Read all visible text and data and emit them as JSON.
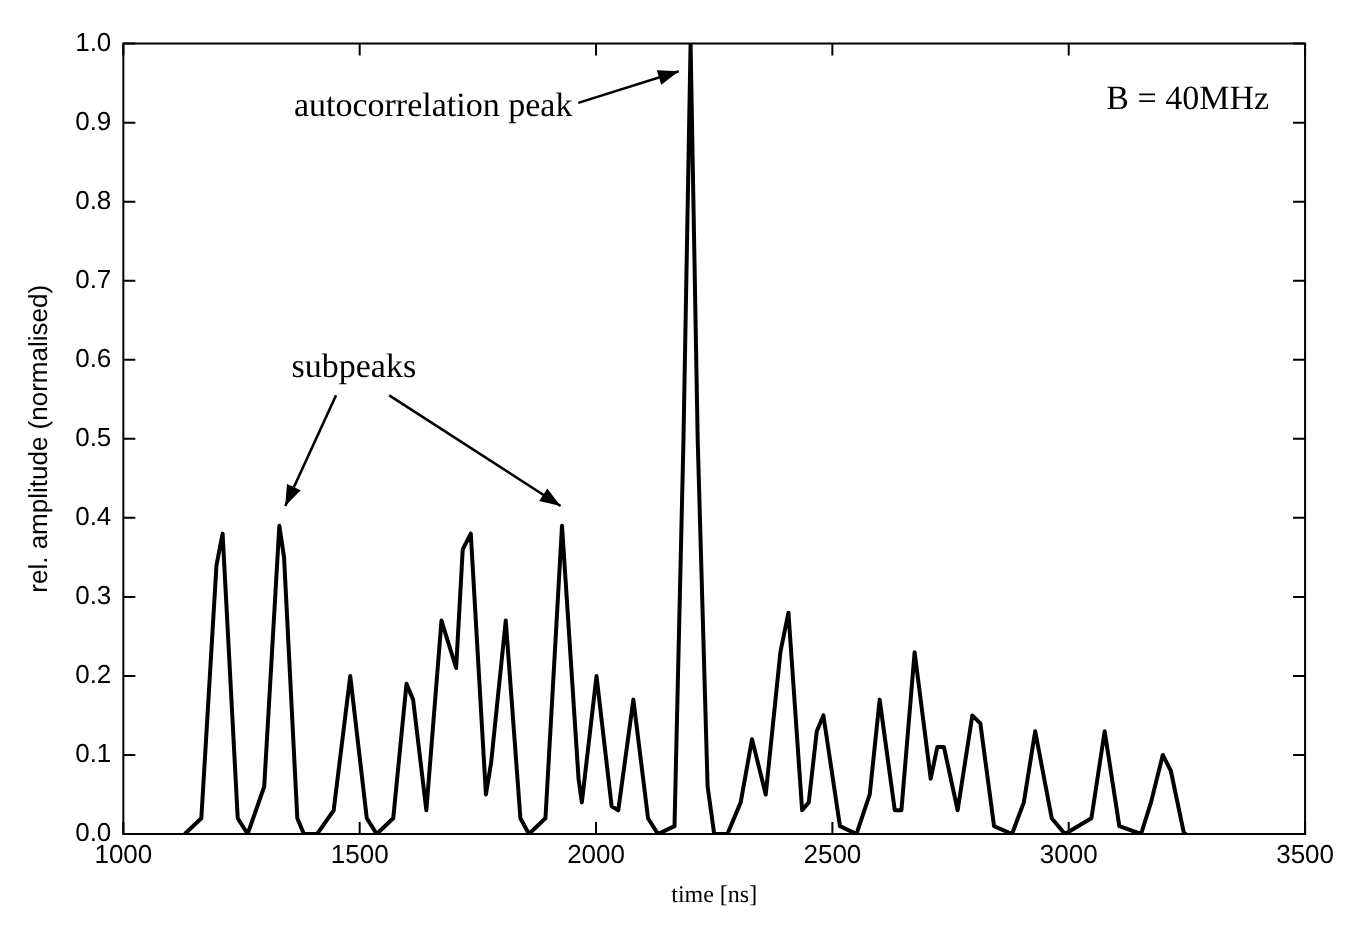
{
  "chart_data": {
    "type": "line",
    "xlabel": "time [ns]",
    "ylabel": "rel. amplitude (normalised)",
    "xlim": [
      1000,
      3500
    ],
    "xticks": [
      1000,
      1500,
      2000,
      2500,
      3000,
      3500
    ],
    "ylim": [
      0,
      1
    ],
    "yticks": [
      {
        "value": 0,
        "label": "0.0"
      },
      0.1,
      0.2,
      0.3,
      0.4,
      0.5,
      0.6,
      0.7,
      0.8,
      0.9,
      {
        "value": 1,
        "label": "1.0"
      }
    ],
    "grid": false,
    "legend": false,
    "marker": "none",
    "line_style": "solid",
    "annotations": [
      "autocorrelation peak",
      "subpeaks",
      "B = 40MHz"
    ],
    "x": [
      1130,
      1165,
      1197,
      1210,
      1242,
      1263,
      1298,
      1330,
      1340,
      1368,
      1382,
      1410,
      1445,
      1480,
      1515,
      1536,
      1571,
      1599,
      1613,
      1641,
      1673,
      1704,
      1718,
      1735,
      1767,
      1778,
      1809,
      1840,
      1858,
      1893,
      1928,
      1963,
      1970,
      2001,
      2033,
      2047,
      2079,
      2110,
      2131,
      2166,
      2185,
      2200,
      2215,
      2236,
      2250,
      2278,
      2306,
      2330,
      2359,
      2390,
      2407,
      2436,
      2450,
      2467,
      2481,
      2516,
      2551,
      2579,
      2600,
      2632,
      2646,
      2674,
      2708,
      2722,
      2736,
      2765,
      2796,
      2813,
      2842,
      2880,
      2905,
      2929,
      2964,
      2992,
      3048,
      3076,
      3107,
      3153,
      3174,
      3199,
      3216,
      3244,
      3250
    ],
    "series": [
      {
        "color": "#000000",
        "values": [
          0,
          0.02,
          0.34,
          0.38,
          0.02,
          0,
          0.06,
          0.39,
          0.35,
          0.02,
          0,
          0,
          0.03,
          0.2,
          0.02,
          0,
          0.02,
          0.19,
          0.17,
          0.03,
          0.27,
          0.21,
          0.36,
          0.38,
          0.05,
          0.09,
          0.27,
          0.02,
          0,
          0.02,
          0.39,
          0.07,
          0.04,
          0.2,
          0.035,
          0.03,
          0.17,
          0.02,
          0,
          0.01,
          0.5,
          1.0,
          0.5,
          0.06,
          0,
          0,
          0.04,
          0.12,
          0.05,
          0.23,
          0.28,
          0.03,
          0.04,
          0.13,
          0.15,
          0.01,
          0,
          0.05,
          0.17,
          0.03,
          0.03,
          0.23,
          0.07,
          0.11,
          0.11,
          0.03,
          0.15,
          0.14,
          0.01,
          0,
          0.04,
          0.13,
          0.02,
          0,
          0.02,
          0.13,
          0.01,
          0,
          0.04,
          0.1,
          0.08,
          0,
          0
        ]
      }
    ]
  }
}
